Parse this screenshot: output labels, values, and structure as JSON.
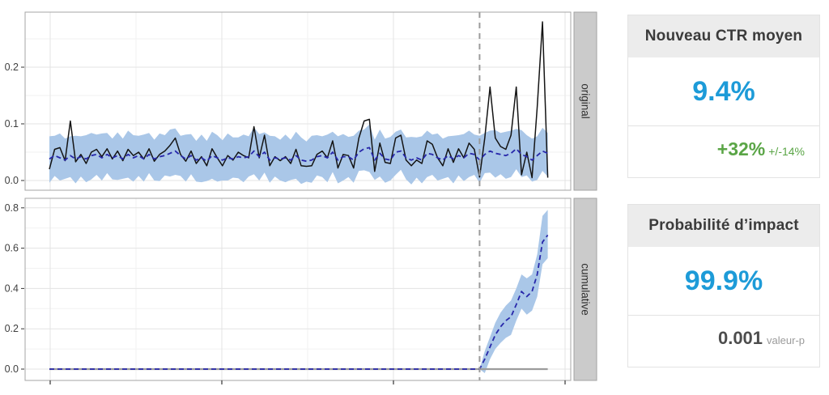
{
  "cards": [
    {
      "title": "Nouveau CTR moyen",
      "value": "9.4%",
      "delta": "+32%",
      "delta_note": "+/-14%"
    },
    {
      "title": "Probabilité d’impact",
      "value": "99.9%",
      "stat": "0.001",
      "stat_note": "valeur-p"
    }
  ],
  "colors": {
    "accent_blue": "#1d9bd8",
    "positive_green": "#5aa546",
    "band_blue": "#aac7e8",
    "observed_line": "#141414",
    "predicted_line": "#2727aa",
    "intervention_gray": "#9b9b9b",
    "zero_line_gray": "#9c9c9c",
    "strip_bg": "#cbcbcb",
    "strip_border": "#a3a3a3",
    "strip_text": "#2f2f2f",
    "grid_major": "#e3e3e3",
    "grid_minor": "#f2f2f2",
    "panel_border": "#a5a5a5",
    "axis_text": "#3f3f3f",
    "tick_mark": "#333333"
  },
  "chart_data": {
    "type": "line",
    "title": "",
    "n_points": 96,
    "intervention_index": 82,
    "x_axis": {
      "tick_labels": [
        "",
        "",
        "",
        ""
      ]
    },
    "facets": [
      {
        "label": "original",
        "ylim": [
          -0.017,
          0.297
        ],
        "yticks": [
          {
            "v": 0.0,
            "t": "0.0"
          },
          {
            "v": 0.1,
            "t": "0.1"
          },
          {
            "v": 0.2,
            "t": "0.2"
          }
        ],
        "yminor": [
          0.05,
          0.15,
          0.25
        ],
        "series": {
          "observed": [
            0.02,
            0.055,
            0.058,
            0.035,
            0.105,
            0.033,
            0.046,
            0.03,
            0.05,
            0.055,
            0.042,
            0.056,
            0.038,
            0.052,
            0.035,
            0.055,
            0.044,
            0.05,
            0.038,
            0.056,
            0.034,
            0.046,
            0.052,
            0.062,
            0.075,
            0.046,
            0.034,
            0.052,
            0.03,
            0.042,
            0.026,
            0.056,
            0.04,
            0.026,
            0.044,
            0.036,
            0.05,
            0.044,
            0.04,
            0.095,
            0.04,
            0.08,
            0.026,
            0.042,
            0.035,
            0.042,
            0.03,
            0.055,
            0.026,
            0.025,
            0.026,
            0.046,
            0.052,
            0.04,
            0.07,
            0.022,
            0.046,
            0.044,
            0.022,
            0.075,
            0.105,
            0.108,
            0.016,
            0.066,
            0.032,
            0.03,
            0.075,
            0.08,
            0.036,
            0.026,
            0.036,
            0.03,
            0.07,
            0.064,
            0.04,
            0.026,
            0.056,
            0.032,
            0.056,
            0.04,
            0.066,
            0.055,
            0.006,
            0.075,
            0.165,
            0.075,
            0.06,
            0.055,
            0.08,
            0.165,
            0.01,
            0.05,
            0.005,
            0.13,
            0.28,
            0.005
          ],
          "predicted": [
            0.038,
            0.044,
            0.04,
            0.036,
            0.044,
            0.038,
            0.042,
            0.038,
            0.044,
            0.046,
            0.04,
            0.046,
            0.04,
            0.044,
            0.038,
            0.046,
            0.04,
            0.044,
            0.038,
            0.046,
            0.038,
            0.042,
            0.044,
            0.048,
            0.052,
            0.044,
            0.038,
            0.044,
            0.036,
            0.04,
            0.034,
            0.044,
            0.04,
            0.036,
            0.04,
            0.038,
            0.042,
            0.04,
            0.042,
            0.052,
            0.042,
            0.05,
            0.036,
            0.04,
            0.038,
            0.04,
            0.036,
            0.044,
            0.036,
            0.034,
            0.036,
            0.042,
            0.044,
            0.04,
            0.05,
            0.036,
            0.042,
            0.042,
            0.036,
            0.05,
            0.056,
            0.058,
            0.036,
            0.048,
            0.038,
            0.036,
            0.05,
            0.052,
            0.04,
            0.036,
            0.04,
            0.036,
            0.048,
            0.046,
            0.04,
            0.036,
            0.044,
            0.038,
            0.044,
            0.04,
            0.048,
            0.046,
            0.036,
            0.046,
            0.052,
            0.048,
            0.046,
            0.044,
            0.048,
            0.056,
            0.046,
            0.042,
            0.036,
            0.044,
            0.052,
            0.048
          ],
          "upper": [
            0.078,
            0.079,
            0.083,
            0.074,
            0.078,
            0.079,
            0.078,
            0.08,
            0.084,
            0.081,
            0.083,
            0.084,
            0.074,
            0.085,
            0.074,
            0.088,
            0.08,
            0.079,
            0.081,
            0.084,
            0.072,
            0.083,
            0.08,
            0.09,
            0.092,
            0.079,
            0.081,
            0.082,
            0.07,
            0.081,
            0.07,
            0.086,
            0.08,
            0.071,
            0.083,
            0.076,
            0.076,
            0.081,
            0.078,
            0.094,
            0.082,
            0.085,
            0.079,
            0.078,
            0.072,
            0.081,
            0.072,
            0.086,
            0.076,
            0.069,
            0.079,
            0.08,
            0.078,
            0.081,
            0.086,
            0.078,
            0.082,
            0.077,
            0.079,
            0.088,
            0.09,
            0.099,
            0.072,
            0.09,
            0.074,
            0.077,
            0.086,
            0.09,
            0.076,
            0.077,
            0.076,
            0.078,
            0.088,
            0.081,
            0.083,
            0.074,
            0.078,
            0.079,
            0.08,
            0.082,
            0.088,
            0.081,
            0.079,
            0.084,
            0.088,
            0.089,
            0.084,
            0.086,
            0.088,
            0.091,
            0.089,
            0.08,
            0.074,
            0.078,
            0.093,
            0.084
          ],
          "lower": [
            -0.004,
            0.008,
            0.0,
            0.003,
            0.006,
            -0.005,
            0.007,
            -0.003,
            0.002,
            0.01,
            0.0,
            0.013,
            0.002,
            0.001,
            0.003,
            0.005,
            -0.002,
            0.008,
            -0.002,
            0.013,
            0.0,
            -0.001,
            0.009,
            0.007,
            0.01,
            0.008,
            -0.002,
            0.011,
            -0.002,
            -0.003,
            -0.001,
            0.003,
            -0.002,
            0.0,
            0.0,
            0.005,
            0.004,
            -0.003,
            0.007,
            0.011,
            0.0,
            0.014,
            -0.004,
            0.007,
            0.0,
            -0.003,
            0.001,
            0.003,
            -0.006,
            -0.002,
            -0.004,
            0.009,
            0.006,
            -0.003,
            0.015,
            -0.005,
            0.0,
            0.006,
            -0.004,
            0.017,
            0.018,
            0.015,
            0.001,
            0.007,
            -0.004,
            0.0,
            0.01,
            0.019,
            0.002,
            -0.007,
            0.005,
            -0.005,
            0.006,
            0.01,
            0.0,
            0.003,
            0.006,
            -0.005,
            0.009,
            -0.001,
            0.006,
            0.01,
            -0.004,
            0.013,
            0.014,
            0.005,
            0.011,
            0.003,
            0.006,
            0.02,
            0.006,
            0.009,
            -0.002,
            0.001,
            0.017,
            0.007
          ]
        }
      },
      {
        "label": "cumulative",
        "ylim": [
          -0.056,
          0.848
        ],
        "yticks": [
          {
            "v": 0.0,
            "t": "0.0"
          },
          {
            "v": 0.2,
            "t": "0.2"
          },
          {
            "v": 0.4,
            "t": "0.4"
          },
          {
            "v": 0.6,
            "t": "0.6"
          },
          {
            "v": 0.8,
            "t": "0.8"
          }
        ],
        "yminor": [
          0.1,
          0.3,
          0.5,
          0.7
        ],
        "series": {
          "post_start_index": 82,
          "pred_post": [
            0,
            0.05,
            0.11,
            0.17,
            0.21,
            0.24,
            0.26,
            0.32,
            0.385,
            0.36,
            0.385,
            0.47,
            0.63,
            0.665
          ],
          "lower_post": [
            0,
            -0.02,
            0.05,
            0.1,
            0.13,
            0.155,
            0.17,
            0.24,
            0.3,
            0.27,
            0.29,
            0.36,
            0.52,
            0.55
          ],
          "upper_post": [
            0,
            0.09,
            0.16,
            0.23,
            0.28,
            0.315,
            0.34,
            0.4,
            0.47,
            0.45,
            0.47,
            0.57,
            0.76,
            0.79
          ]
        }
      }
    ]
  }
}
